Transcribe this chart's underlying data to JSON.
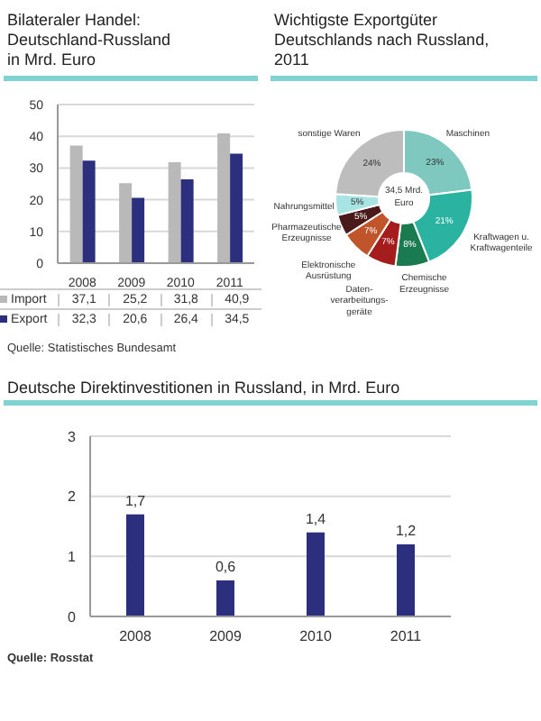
{
  "chart_data": [
    {
      "type": "bar",
      "title": "Bilateraler Handel: Deutschland-Russland in Mrd. Euro",
      "categories": [
        "2008",
        "2009",
        "2010",
        "2011"
      ],
      "series": [
        {
          "name": "Import",
          "color": "#b9b9b9",
          "values": [
            37.1,
            25.2,
            31.8,
            40.9
          ],
          "value_labels": [
            "37,1",
            "25,2",
            "31,8",
            "40,9"
          ]
        },
        {
          "name": "Export",
          "color": "#2b2f7e",
          "values": [
            32.3,
            20.6,
            26.4,
            34.5
          ],
          "value_labels": [
            "32,3",
            "20,6",
            "26,4",
            "34,5"
          ]
        }
      ],
      "ylim": [
        0,
        50
      ],
      "yticks": [
        0,
        10,
        20,
        30,
        40,
        50
      ],
      "grid": "y",
      "legend": "bottom",
      "annotations": [
        "Quelle: Statistisches Bundesamt"
      ]
    },
    {
      "type": "donut",
      "title": "Wichtigste Exportgüter Deutschlands nach Russland, 2011",
      "categories": [
        "Maschinen",
        "Kraftwagen u. Kraftwagenteile",
        "Chemische Erzeugnisse",
        "Daten-verarbeitungs-geräte",
        "Elektronische Ausrüstung",
        "Pharmazeutische Erzeugnisse",
        "Nahrungsmittel",
        "sonstige Waren"
      ],
      "values": [
        23,
        21,
        8,
        7,
        7,
        5,
        5,
        24
      ],
      "value_labels": [
        "23%",
        "21%",
        "8%",
        "7%",
        "7%",
        "5%",
        "5%",
        "24%"
      ],
      "colors": [
        "#7fc8c0",
        "#2ab3a0",
        "#1a7a50",
        "#a51c1c",
        "#c0542a",
        "#4a1a1a",
        "#a8e4e4",
        "#bdbdbd"
      ],
      "annotations": [
        "34,5 Mrd. Euro"
      ]
    },
    {
      "type": "bar",
      "title": "Deutsche Direktinvestitionen in Russland, in Mrd. Euro",
      "categories": [
        "2008",
        "2009",
        "2010",
        "2011"
      ],
      "values": [
        1.7,
        0.6,
        1.4,
        1.2
      ],
      "value_labels": [
        "1,7",
        "0,6",
        "1,4",
        "1,2"
      ],
      "color": "#2b2f7e",
      "ylim": [
        0,
        3
      ],
      "yticks": [
        0,
        1,
        2,
        3
      ],
      "grid": "y",
      "annotations": [
        "Quelle: Rosstat"
      ]
    }
  ]
}
